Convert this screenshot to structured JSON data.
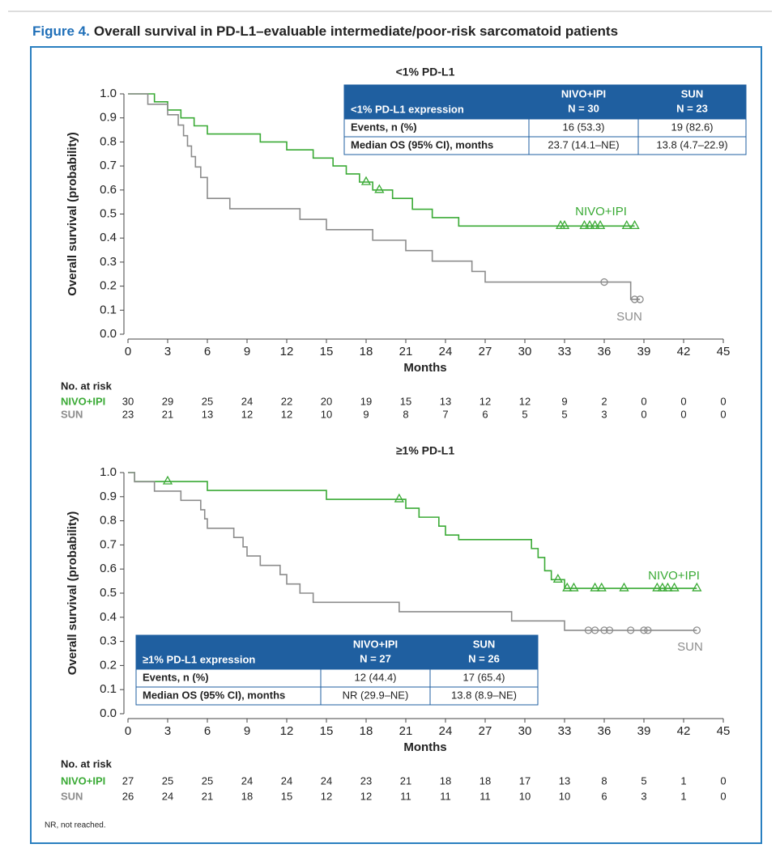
{
  "figure_label": "Figure 4.",
  "title": "Overall survival in PD-L1–evaluable intermediate/poor-risk sarcomatoid patients",
  "footnote": "NR, not reached.",
  "chart_data": [
    {
      "type": "line",
      "step": true,
      "title": "<1% PD-L1",
      "xlabel": "Months",
      "ylabel": "Overall survival (probability)",
      "xlim": [
        0,
        45
      ],
      "ylim": [
        0,
        1
      ],
      "xticks": [
        0,
        3,
        6,
        9,
        12,
        15,
        18,
        21,
        24,
        27,
        30,
        33,
        36,
        39,
        42,
        45
      ],
      "yticks": [
        {
          "value": 0,
          "label": "0.0"
        },
        0.1,
        0.2,
        0.3,
        0.4,
        0.5,
        0.6,
        0.7,
        0.8,
        0.9,
        {
          "value": 1,
          "label": "1.0"
        }
      ],
      "series": [
        {
          "name": "NIVO+IPI",
          "color": "#3aaa35",
          "marker": "triangle",
          "x": [
            0,
            2,
            3,
            4,
            5,
            6,
            10,
            12,
            14,
            15.5,
            16.5,
            17.5,
            18.5,
            20,
            21.5,
            23,
            25,
            38.3
          ],
          "values": [
            1,
            0.967,
            0.933,
            0.9,
            0.867,
            0.833,
            0.8,
            0.767,
            0.733,
            0.7,
            0.667,
            0.633,
            0.6,
            0.565,
            0.52,
            0.485,
            0.45,
            0.45
          ],
          "censor_x": [
            18,
            19,
            32.7,
            33,
            34.5,
            34.9,
            35.3,
            35.7,
            37.7,
            38.3
          ],
          "censor_values": [
            0.633,
            0.6,
            0.45,
            0.45,
            0.45,
            0.45,
            0.45,
            0.45,
            0.45,
            0.45
          ]
        },
        {
          "name": "SUN",
          "color": "#8c8c8c",
          "marker": "circle",
          "x": [
            0,
            1.5,
            3,
            3.8,
            4.2,
            4.5,
            4.8,
            5.1,
            5.5,
            6,
            7.7,
            13,
            15,
            18.5,
            21,
            23,
            26,
            27,
            38,
            38.7
          ],
          "values": [
            1,
            0.957,
            0.913,
            0.87,
            0.826,
            0.783,
            0.739,
            0.696,
            0.652,
            0.565,
            0.522,
            0.478,
            0.435,
            0.391,
            0.348,
            0.304,
            0.261,
            0.217,
            0.145,
            0.145
          ],
          "censor_x": [
            36,
            38.3,
            38.7
          ],
          "censor_values": [
            0.217,
            0.145,
            0.145
          ]
        }
      ],
      "table_corner": "upper right",
      "table": {
        "header": [
          "<1% PD-L1 expression",
          "NIVO+IPI",
          "SUN"
        ],
        "n": [
          "N = 30",
          "N = 23"
        ],
        "rows": [
          [
            "Events, n (%)",
            "16 (53.3)",
            "19 (82.6)"
          ],
          [
            "Median OS (95% CI), months",
            "23.7 (14.1–NE)",
            "13.8 (4.7–22.9)"
          ]
        ]
      },
      "at_risk": {
        "label": "No. at risk",
        "rows": [
          [
            30,
            29,
            25,
            24,
            22,
            20,
            19,
            15,
            13,
            12,
            12,
            9,
            2,
            0,
            0,
            0
          ],
          [
            23,
            21,
            13,
            12,
            12,
            10,
            9,
            8,
            7,
            6,
            5,
            5,
            3,
            0,
            0,
            0
          ]
        ]
      }
    },
    {
      "type": "line",
      "step": true,
      "title": "≥1% PD-L1",
      "xlabel": "Months",
      "ylabel": "Overall survival (probability)",
      "xlim": [
        0,
        45
      ],
      "ylim": [
        0,
        1
      ],
      "xticks": [
        0,
        3,
        6,
        9,
        12,
        15,
        18,
        21,
        24,
        27,
        30,
        33,
        36,
        39,
        42,
        45
      ],
      "yticks": [
        {
          "value": 0,
          "label": "0.0"
        },
        0.1,
        0.2,
        0.3,
        0.4,
        0.5,
        0.6,
        0.7,
        0.8,
        0.9,
        {
          "value": 1,
          "label": "1.0"
        }
      ],
      "series": [
        {
          "name": "NIVO+IPI",
          "color": "#3aaa35",
          "marker": "triangle",
          "x": [
            0,
            0.5,
            6,
            15,
            21,
            22,
            23.5,
            24,
            25,
            30.5,
            31,
            31.5,
            32,
            33,
            43
          ],
          "values": [
            1,
            0.963,
            0.926,
            0.889,
            0.852,
            0.815,
            0.778,
            0.741,
            0.722,
            0.685,
            0.648,
            0.593,
            0.556,
            0.52,
            0.52
          ],
          "censor_x": [
            3,
            20.5,
            32.5,
            33.2,
            33.7,
            35.3,
            35.8,
            37.5,
            40,
            40.4,
            40.8,
            41.3,
            43
          ],
          "censor_values": [
            0.963,
            0.889,
            0.556,
            0.52,
            0.52,
            0.52,
            0.52,
            0.52,
            0.52,
            0.52,
            0.52,
            0.52,
            0.52
          ]
        },
        {
          "name": "SUN",
          "color": "#8c8c8c",
          "marker": "circle",
          "x": [
            0,
            0.5,
            2,
            4,
            5.5,
            5.8,
            6,
            8,
            8.7,
            9,
            10,
            11.5,
            12,
            13,
            14,
            20.5,
            29,
            33,
            43
          ],
          "values": [
            1,
            0.962,
            0.923,
            0.885,
            0.846,
            0.808,
            0.769,
            0.731,
            0.692,
            0.654,
            0.615,
            0.577,
            0.538,
            0.5,
            0.462,
            0.423,
            0.385,
            0.346,
            0.346
          ],
          "censor_x": [
            34.8,
            35.3,
            36,
            36.4,
            38,
            39,
            39.3,
            43
          ],
          "censor_values": [
            0.346,
            0.346,
            0.346,
            0.346,
            0.346,
            0.346,
            0.346,
            0.346
          ]
        }
      ],
      "table_corner": "lower left",
      "table": {
        "header": [
          "≥1% PD-L1 expression",
          "NIVO+IPI",
          "SUN"
        ],
        "n": [
          "N = 27",
          "N = 26"
        ],
        "rows": [
          [
            "Events, n (%)",
            "12 (44.4)",
            "17 (65.4)"
          ],
          [
            "Median OS (95% CI), months",
            "NR (29.9–NE)",
            "13.8 (8.9–NE)"
          ]
        ]
      },
      "at_risk": {
        "label": "No. at risk",
        "rows": [
          [
            27,
            25,
            25,
            24,
            24,
            24,
            23,
            21,
            18,
            18,
            17,
            13,
            8,
            5,
            1,
            0
          ],
          [
            26,
            24,
            21,
            18,
            15,
            12,
            12,
            11,
            11,
            11,
            10,
            10,
            6,
            3,
            1,
            0
          ]
        ]
      }
    }
  ]
}
